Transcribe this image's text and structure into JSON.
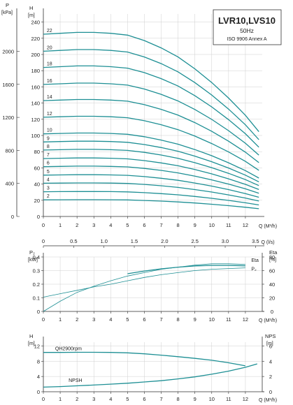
{
  "colors": {
    "curve": "#1d8f94",
    "grid": "#cfcfcf",
    "axis": "#333333",
    "text": "#222222"
  },
  "chart_data": [
    {
      "type": "line",
      "id": "head",
      "title": "LVR10,LVS10",
      "subtitle1": "50Hz",
      "subtitle2": "ISO 9906 Annex A",
      "y_unit_left": "P",
      "y_unit_left_sub": "[kPa]",
      "y_unit_right": "H",
      "y_unit_right_sub": "[m]",
      "x_label": "Q (M³/h)",
      "x2_label": "Q (l/s)",
      "x_ticks": [
        "0",
        "1",
        "2",
        "3",
        "4",
        "5",
        "6",
        "7",
        "8",
        "9",
        "10",
        "11",
        "12"
      ],
      "x2_ticks": [
        "0",
        "0.5",
        "1.0",
        "1.5",
        "2.0",
        "2.5",
        "3.0",
        "3.5"
      ],
      "x2_values": [
        0,
        0.5,
        1.0,
        1.5,
        2.0,
        2.5,
        3.0,
        3.5
      ],
      "y_ticks": [
        "0",
        "20",
        "40",
        "60",
        "80",
        "100",
        "120",
        "140",
        "160",
        "180",
        "200",
        "220",
        "240"
      ],
      "p_ticks": [
        "0",
        "400",
        "800",
        "1200",
        "1600",
        "2000"
      ],
      "p_values": [
        0,
        400,
        800,
        1200,
        1600,
        2000
      ],
      "xlim": [
        0,
        13
      ],
      "ylim": [
        0,
        250
      ],
      "grid": true,
      "x": [
        0,
        1,
        2,
        3,
        4,
        5,
        6,
        7,
        8,
        9,
        10,
        11,
        12,
        12.8
      ],
      "shape": [
        1.0,
        1.005,
        1.01,
        1.01,
        1.005,
        0.995,
        0.965,
        0.925,
        0.875,
        0.81,
        0.735,
        0.65,
        0.555,
        0.465
      ],
      "series": [
        {
          "name": "2",
          "shutoff": 20.5
        },
        {
          "name": "3",
          "shutoff": 30.5
        },
        {
          "name": "4",
          "shutoff": 41
        },
        {
          "name": "5",
          "shutoff": 51
        },
        {
          "name": "6",
          "shutoff": 61.5
        },
        {
          "name": "7",
          "shutoff": 71.5
        },
        {
          "name": "8",
          "shutoff": 82
        },
        {
          "name": "9",
          "shutoff": 92
        },
        {
          "name": "10",
          "shutoff": 102
        },
        {
          "name": "12",
          "shutoff": 122.5
        },
        {
          "name": "14",
          "shutoff": 143
        },
        {
          "name": "16",
          "shutoff": 163
        },
        {
          "name": "18",
          "shutoff": 184
        },
        {
          "name": "20",
          "shutoff": 204
        },
        {
          "name": "22",
          "shutoff": 225
        }
      ]
    },
    {
      "type": "line",
      "id": "power",
      "y_unit_left": "P₂",
      "y_unit_left_sub": "[kW]",
      "y_unit_right": "Eta",
      "y_unit_right_sub": "[%]",
      "x_label": "Q (M³/h)",
      "x_ticks": [
        "0",
        "1",
        "2",
        "3",
        "4",
        "5",
        "6",
        "7",
        "8",
        "9",
        "10",
        "11",
        "12"
      ],
      "y_ticks": [
        "0",
        "0.1",
        "0.2",
        "0.3",
        "0.4"
      ],
      "y_values": [
        0,
        0.1,
        0.2,
        0.3,
        0.4
      ],
      "y2_ticks": [
        "0",
        "20",
        "40",
        "60",
        "80"
      ],
      "y2_values": [
        0,
        20,
        40,
        60,
        80
      ],
      "xlim": [
        0,
        13
      ],
      "ylim": [
        0,
        0.4
      ],
      "y2lim": [
        0,
        80
      ],
      "grid": true,
      "series": [
        {
          "name": "Eta",
          "axis": "right",
          "x": [
            0,
            1,
            2,
            3,
            4,
            5,
            6,
            7,
            8,
            9,
            10,
            11,
            12
          ],
          "values": [
            0,
            15,
            28,
            37,
            45,
            52,
            57,
            62,
            65,
            68,
            70,
            70,
            69
          ]
        },
        {
          "name": "P₂",
          "axis": "left",
          "x": [
            0,
            1,
            2,
            3,
            4,
            5,
            6,
            7,
            8,
            9,
            10,
            11,
            12
          ],
          "values": [
            0.105,
            0.13,
            0.155,
            0.18,
            0.2,
            0.225,
            0.25,
            0.27,
            0.285,
            0.3,
            0.31,
            0.315,
            0.32
          ]
        },
        {
          "name": "",
          "axis": "left",
          "x": [
            5,
            6,
            7,
            8,
            9,
            10,
            11,
            12
          ],
          "values": [
            0.277,
            0.297,
            0.313,
            0.325,
            0.334,
            0.338,
            0.338,
            0.335
          ]
        }
      ]
    },
    {
      "type": "line",
      "id": "npsh",
      "y_unit_left": "H",
      "y_unit_left_sub": "[m]",
      "y_unit_right": "NPS",
      "y_unit_right_sub": "[m]",
      "x_label": "Q (M³/h)",
      "x_ticks": [
        "0",
        "1",
        "2",
        "3",
        "4",
        "5",
        "6",
        "7",
        "8",
        "9",
        "10",
        "11",
        "12"
      ],
      "y_ticks": [
        "0",
        "4",
        "8",
        "12"
      ],
      "y_values": [
        0,
        4,
        8,
        12
      ],
      "y2_ticks": [
        "0",
        "2",
        "4",
        "6"
      ],
      "y2_values": [
        0,
        2,
        4,
        6
      ],
      "xlim": [
        0,
        13
      ],
      "ylim": [
        0,
        13
      ],
      "y2lim": [
        0,
        6.5
      ],
      "grid": true,
      "series": [
        {
          "name": "QH2900rpm",
          "axis": "left",
          "x": [
            0,
            1,
            2,
            3,
            4,
            5,
            6,
            7,
            8,
            9,
            10,
            11,
            12
          ],
          "values": [
            10.3,
            10.3,
            10.35,
            10.35,
            10.3,
            10.2,
            9.95,
            9.6,
            9.2,
            8.75,
            8.25,
            7.6,
            6.8
          ]
        },
        {
          "name": "NPSH",
          "axis": "right",
          "x": [
            0,
            1,
            2,
            3,
            4,
            5,
            6,
            7,
            8,
            9,
            10,
            11,
            12,
            12.7
          ],
          "values": [
            0.6,
            0.68,
            0.78,
            0.88,
            1.0,
            1.12,
            1.28,
            1.45,
            1.68,
            1.95,
            2.3,
            2.7,
            3.2,
            3.65
          ]
        }
      ]
    }
  ]
}
